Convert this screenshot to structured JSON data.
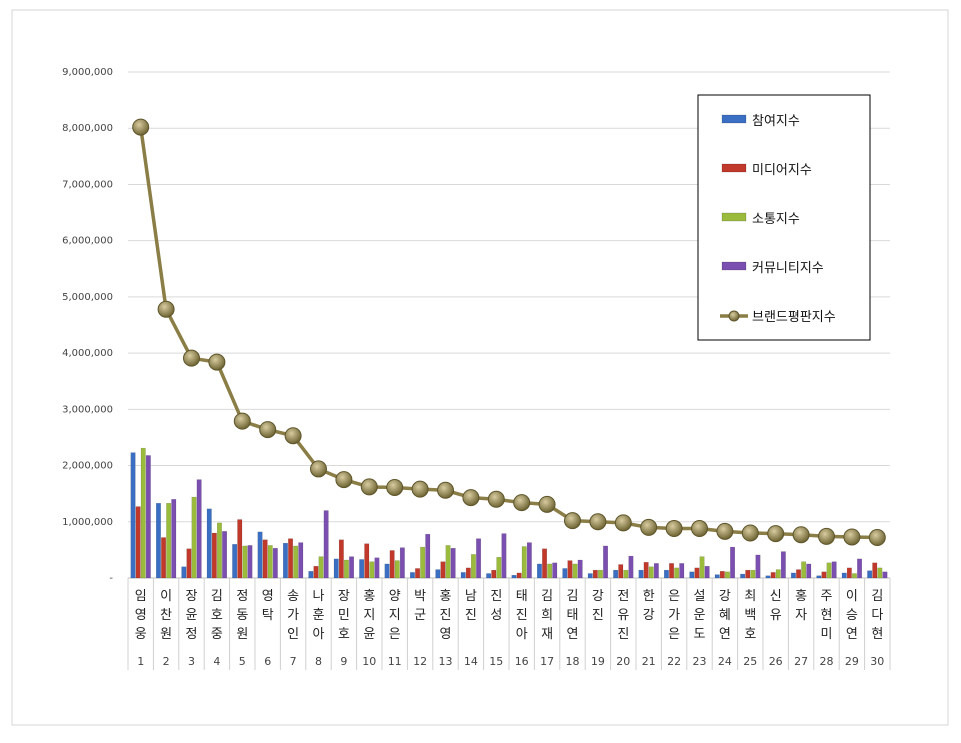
{
  "chart_data": {
    "type": "bar",
    "ylim": [
      0,
      9000000
    ],
    "yticks": [
      "-",
      "1,000,000",
      "2,000,000",
      "3,000,000",
      "4,000,000",
      "5,000,000",
      "6,000,000",
      "7,000,000",
      "8,000,000",
      "9,000,000"
    ],
    "grid": true,
    "legend_position": "top-right",
    "categories": [
      "임영웅",
      "이찬원",
      "장윤정",
      "김호중",
      "정동원",
      "영탁",
      "송가인",
      "나훈아",
      "장민호",
      "홍지윤",
      "양지은",
      "박군",
      "홍진영",
      "남진",
      "진성",
      "태진아",
      "김희재",
      "김태연",
      "강진",
      "전유진",
      "한강",
      "은가은",
      "설운도",
      "강혜연",
      "최백호",
      "신유",
      "홍자",
      "주현미",
      "이승연",
      "김다현"
    ],
    "ranks": [
      "1",
      "2",
      "3",
      "4",
      "5",
      "6",
      "7",
      "8",
      "9",
      "10",
      "11",
      "12",
      "13",
      "14",
      "15",
      "16",
      "17",
      "18",
      "19",
      "20",
      "21",
      "22",
      "23",
      "24",
      "25",
      "26",
      "27",
      "28",
      "29",
      "30"
    ],
    "series": [
      {
        "name": "참여지수",
        "type": "bar",
        "color": "#3a6fc4",
        "values": [
          2230000,
          1330000,
          200000,
          1230000,
          600000,
          820000,
          620000,
          120000,
          340000,
          330000,
          250000,
          100000,
          150000,
          100000,
          80000,
          50000,
          250000,
          170000,
          80000,
          140000,
          140000,
          140000,
          110000,
          60000,
          70000,
          40000,
          90000,
          40000,
          90000,
          130000
        ]
      },
      {
        "name": "미디어지수",
        "type": "bar",
        "color": "#c0392b",
        "values": [
          1270000,
          720000,
          520000,
          800000,
          1040000,
          680000,
          700000,
          210000,
          680000,
          610000,
          490000,
          170000,
          290000,
          180000,
          140000,
          90000,
          520000,
          310000,
          140000,
          240000,
          280000,
          260000,
          180000,
          120000,
          140000,
          100000,
          150000,
          110000,
          180000,
          270000
        ]
      },
      {
        "name": "소통지수",
        "type": "bar",
        "color": "#9bbb3c",
        "values": [
          2310000,
          1330000,
          1440000,
          980000,
          570000,
          580000,
          570000,
          380000,
          320000,
          290000,
          310000,
          550000,
          580000,
          420000,
          370000,
          560000,
          250000,
          250000,
          140000,
          140000,
          200000,
          180000,
          380000,
          110000,
          140000,
          150000,
          290000,
          270000,
          80000,
          180000
        ]
      },
      {
        "name": "커뮤니티지수",
        "type": "bar",
        "color": "#7b4fb0",
        "values": [
          2180000,
          1400000,
          1750000,
          830000,
          580000,
          530000,
          630000,
          1200000,
          380000,
          360000,
          540000,
          780000,
          530000,
          700000,
          790000,
          630000,
          270000,
          320000,
          570000,
          390000,
          260000,
          260000,
          210000,
          550000,
          410000,
          470000,
          250000,
          290000,
          340000,
          110000
        ]
      },
      {
        "name": "브랜드평판지수",
        "type": "line",
        "color": "#8a7d45",
        "values": [
          8020000,
          4780000,
          3910000,
          3840000,
          2790000,
          2640000,
          2530000,
          1940000,
          1750000,
          1620000,
          1610000,
          1580000,
          1560000,
          1430000,
          1400000,
          1340000,
          1310000,
          1020000,
          1000000,
          980000,
          900000,
          880000,
          880000,
          830000,
          800000,
          790000,
          770000,
          740000,
          730000,
          720000
        ]
      }
    ]
  }
}
